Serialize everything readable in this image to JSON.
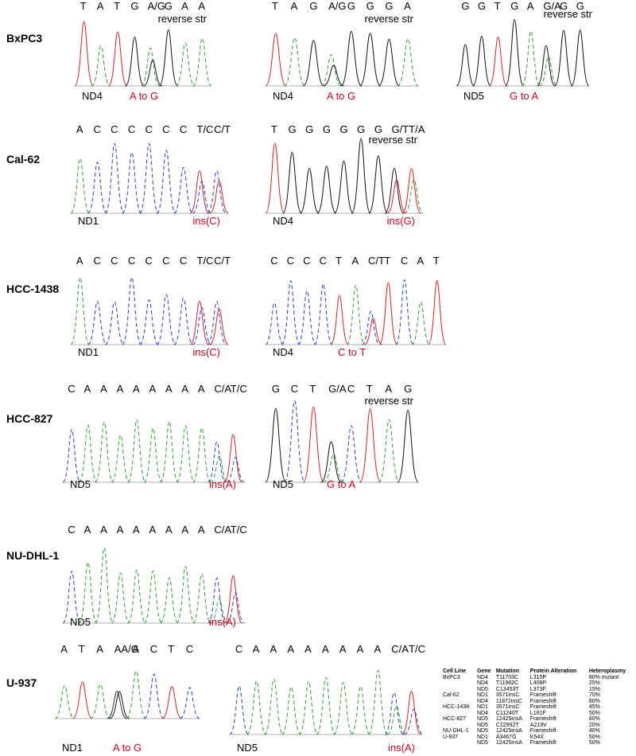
{
  "colors": {
    "A": "#2ca02c",
    "C": "#2040d0",
    "G": "#111111",
    "T": "#e02020",
    "mutation_text": "#d0021b"
  },
  "rows": [
    {
      "label": "BxPC3",
      "panels": [
        {
          "bases": [
            "T",
            "A",
            "T",
            "G",
            "A/G",
            "G",
            "A",
            "A"
          ],
          "reverse_label": "reverse str",
          "gene": "ND4",
          "mutation": "A to G"
        },
        {
          "bases": [
            "T",
            "A",
            "G",
            "A/G",
            "G",
            "G",
            "G",
            "A"
          ],
          "reverse_label": "reverse str",
          "gene": "ND4",
          "mutation": "A to G"
        },
        {
          "bases": [
            "G",
            "G",
            "T",
            "G",
            "A",
            "G/A",
            "G",
            "G"
          ],
          "reverse_label": "reverse str",
          "gene": "ND5",
          "mutation": "G to A"
        }
      ]
    },
    {
      "label": "Cal-62",
      "panels": [
        {
          "bases": [
            "A",
            "C",
            "C",
            "C",
            "C",
            "C",
            "C",
            "T/C",
            "C/T"
          ],
          "reverse_label": "",
          "gene": "ND1",
          "mutation": "ins(C)"
        },
        {
          "bases": [
            "T",
            "G",
            "G",
            "G",
            "G",
            "G",
            "G",
            "G/T",
            "T/A"
          ],
          "reverse_label": "reverse str",
          "gene": "ND4",
          "mutation": "ins(G)"
        }
      ]
    },
    {
      "label": "HCC-1438",
      "panels": [
        {
          "bases": [
            "A",
            "C",
            "C",
            "C",
            "C",
            "C",
            "C",
            "T/C",
            "C/T"
          ],
          "reverse_label": "",
          "gene": "ND1",
          "mutation": "ins(C)"
        },
        {
          "bases": [
            "C",
            "C",
            "C",
            "C",
            "T",
            "A",
            "C/T",
            "T",
            "C",
            "A",
            "T"
          ],
          "reverse_label": "",
          "gene": "ND4",
          "mutation": "C to T"
        }
      ]
    },
    {
      "label": "HCC-827",
      "panels": [
        {
          "bases": [
            "C",
            "A",
            "A",
            "A",
            "A",
            "A",
            "A",
            "A",
            "A",
            "C/A",
            "T/C"
          ],
          "reverse_label": "",
          "gene": "ND5",
          "mutation": "ins(A)"
        },
        {
          "bases": [
            "G",
            "C",
            "T",
            "G/A",
            "C",
            "T",
            "A",
            "G"
          ],
          "reverse_label": "reverse str",
          "gene": "ND5",
          "mutation": "G to A"
        }
      ]
    },
    {
      "label": "NU-DHL-1",
      "panels": [
        {
          "bases": [
            "C",
            "A",
            "A",
            "A",
            "A",
            "A",
            "A",
            "A",
            "A",
            "C/A",
            "T/C"
          ],
          "reverse_label": "",
          "gene": "ND5",
          "mutation": "ins(A)"
        }
      ]
    },
    {
      "label": "U-937",
      "panels": [
        {
          "bases": [
            "A",
            "T",
            "A",
            "AA/G",
            "A",
            "C",
            "T",
            "C"
          ],
          "reverse_label": "",
          "gene": "ND1",
          "mutation": "A to G"
        },
        {
          "bases": [
            "C",
            "A",
            "A",
            "A",
            "A",
            "A",
            "A",
            "A",
            "A",
            "C/A",
            "T/C"
          ],
          "reverse_label": "",
          "gene": "ND5",
          "mutation": "ins(A)"
        }
      ]
    }
  ],
  "table": {
    "headers": [
      "Cell Line",
      "Gene",
      "Mutation",
      "Protein Alteration",
      "Heteroplasmy"
    ],
    "rows": [
      [
        "BxPC3",
        "ND4",
        "T11703C",
        "L315P",
        "80% mutant"
      ],
      [
        "",
        "ND4",
        "T11982C",
        "L408P",
        "25%"
      ],
      [
        "",
        "ND5",
        "C13453T",
        "L373F",
        "15%"
      ],
      [
        "Cal-62",
        "ND1",
        "3571insC",
        "Frameshift",
        "70%"
      ],
      [
        "",
        "ND4",
        "11872insC",
        "Frameshift",
        "80%"
      ],
      [
        "HCC-1438",
        "ND1",
        "3571insC",
        "Frameshift",
        "45%"
      ],
      [
        "",
        "ND4",
        "C11240T",
        "L161F",
        "50%"
      ],
      [
        "HCC-827",
        "ND5",
        "12425insA",
        "Frameshift",
        "80%"
      ],
      [
        "",
        "ND5",
        "C12992T",
        "A219V",
        "20%"
      ],
      [
        "NU-DHL-1",
        "ND5",
        "12425insA",
        "Frameshift",
        "40%"
      ],
      [
        "U-937",
        "ND1",
        "A3467G",
        "K54X",
        "50%"
      ],
      [
        "",
        "ND5",
        "12425insA",
        "Frameshift",
        "50%"
      ]
    ]
  }
}
